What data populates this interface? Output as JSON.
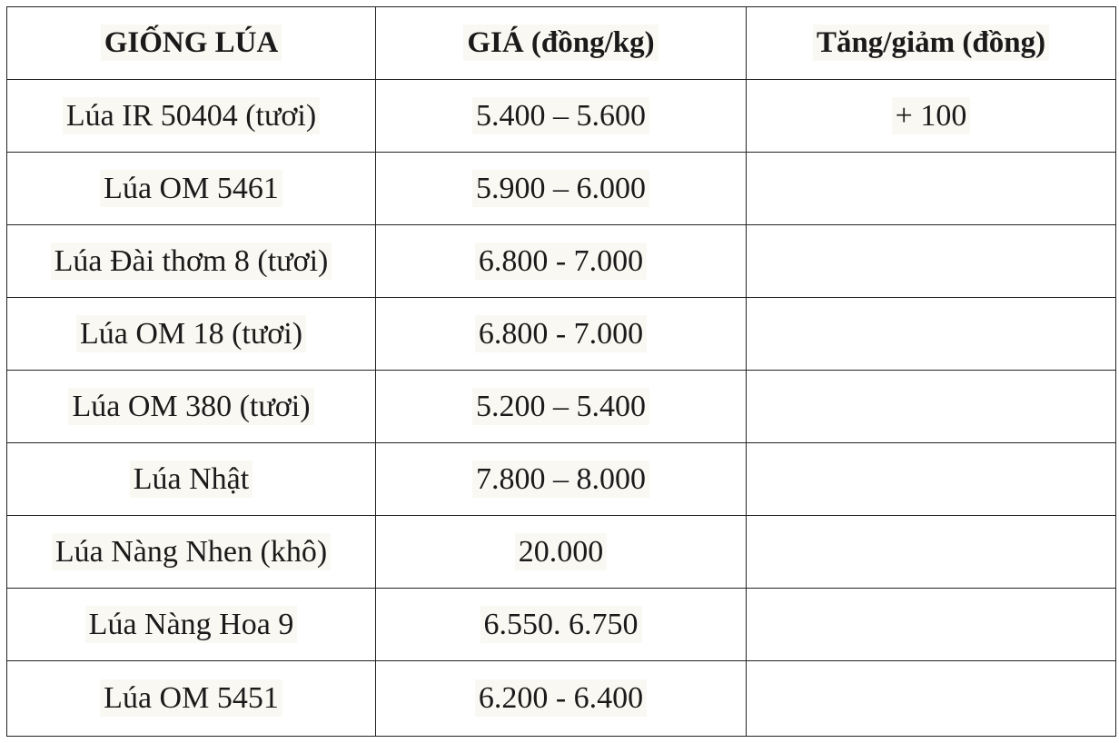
{
  "table": {
    "header": [
      "GIỐNG LÚA",
      "GIÁ (đồng/kg)",
      "Tăng/giảm (đồng)"
    ],
    "rows": [
      {
        "variety": "Lúa IR 50404 (tươi)",
        "price": "5.400 – 5.600",
        "change": "+ 100"
      },
      {
        "variety": "Lúa OM 5461",
        "price": "5.900 – 6.000"
      },
      {
        "variety": "Lúa Đài thơm 8 (tươi)",
        "price": "6.800 - 7.000"
      },
      {
        "variety": "Lúa OM 18 (tươi)",
        "price": "6.800 - 7.000"
      },
      {
        "variety": "Lúa OM 380 (tươi)",
        "price": "5.200 – 5.400"
      },
      {
        "variety": "Lúa Nhật",
        "price": "7.800 – 8.000"
      },
      {
        "variety": "Lúa Nàng Nhen (khô)",
        "price": "20.000"
      },
      {
        "variety": "Lúa Nàng Hoa 9",
        "price": "6.550. 6.750"
      },
      {
        "variety": "Lúa OM 5451",
        "price": "6.200 - 6.400"
      }
    ]
  }
}
